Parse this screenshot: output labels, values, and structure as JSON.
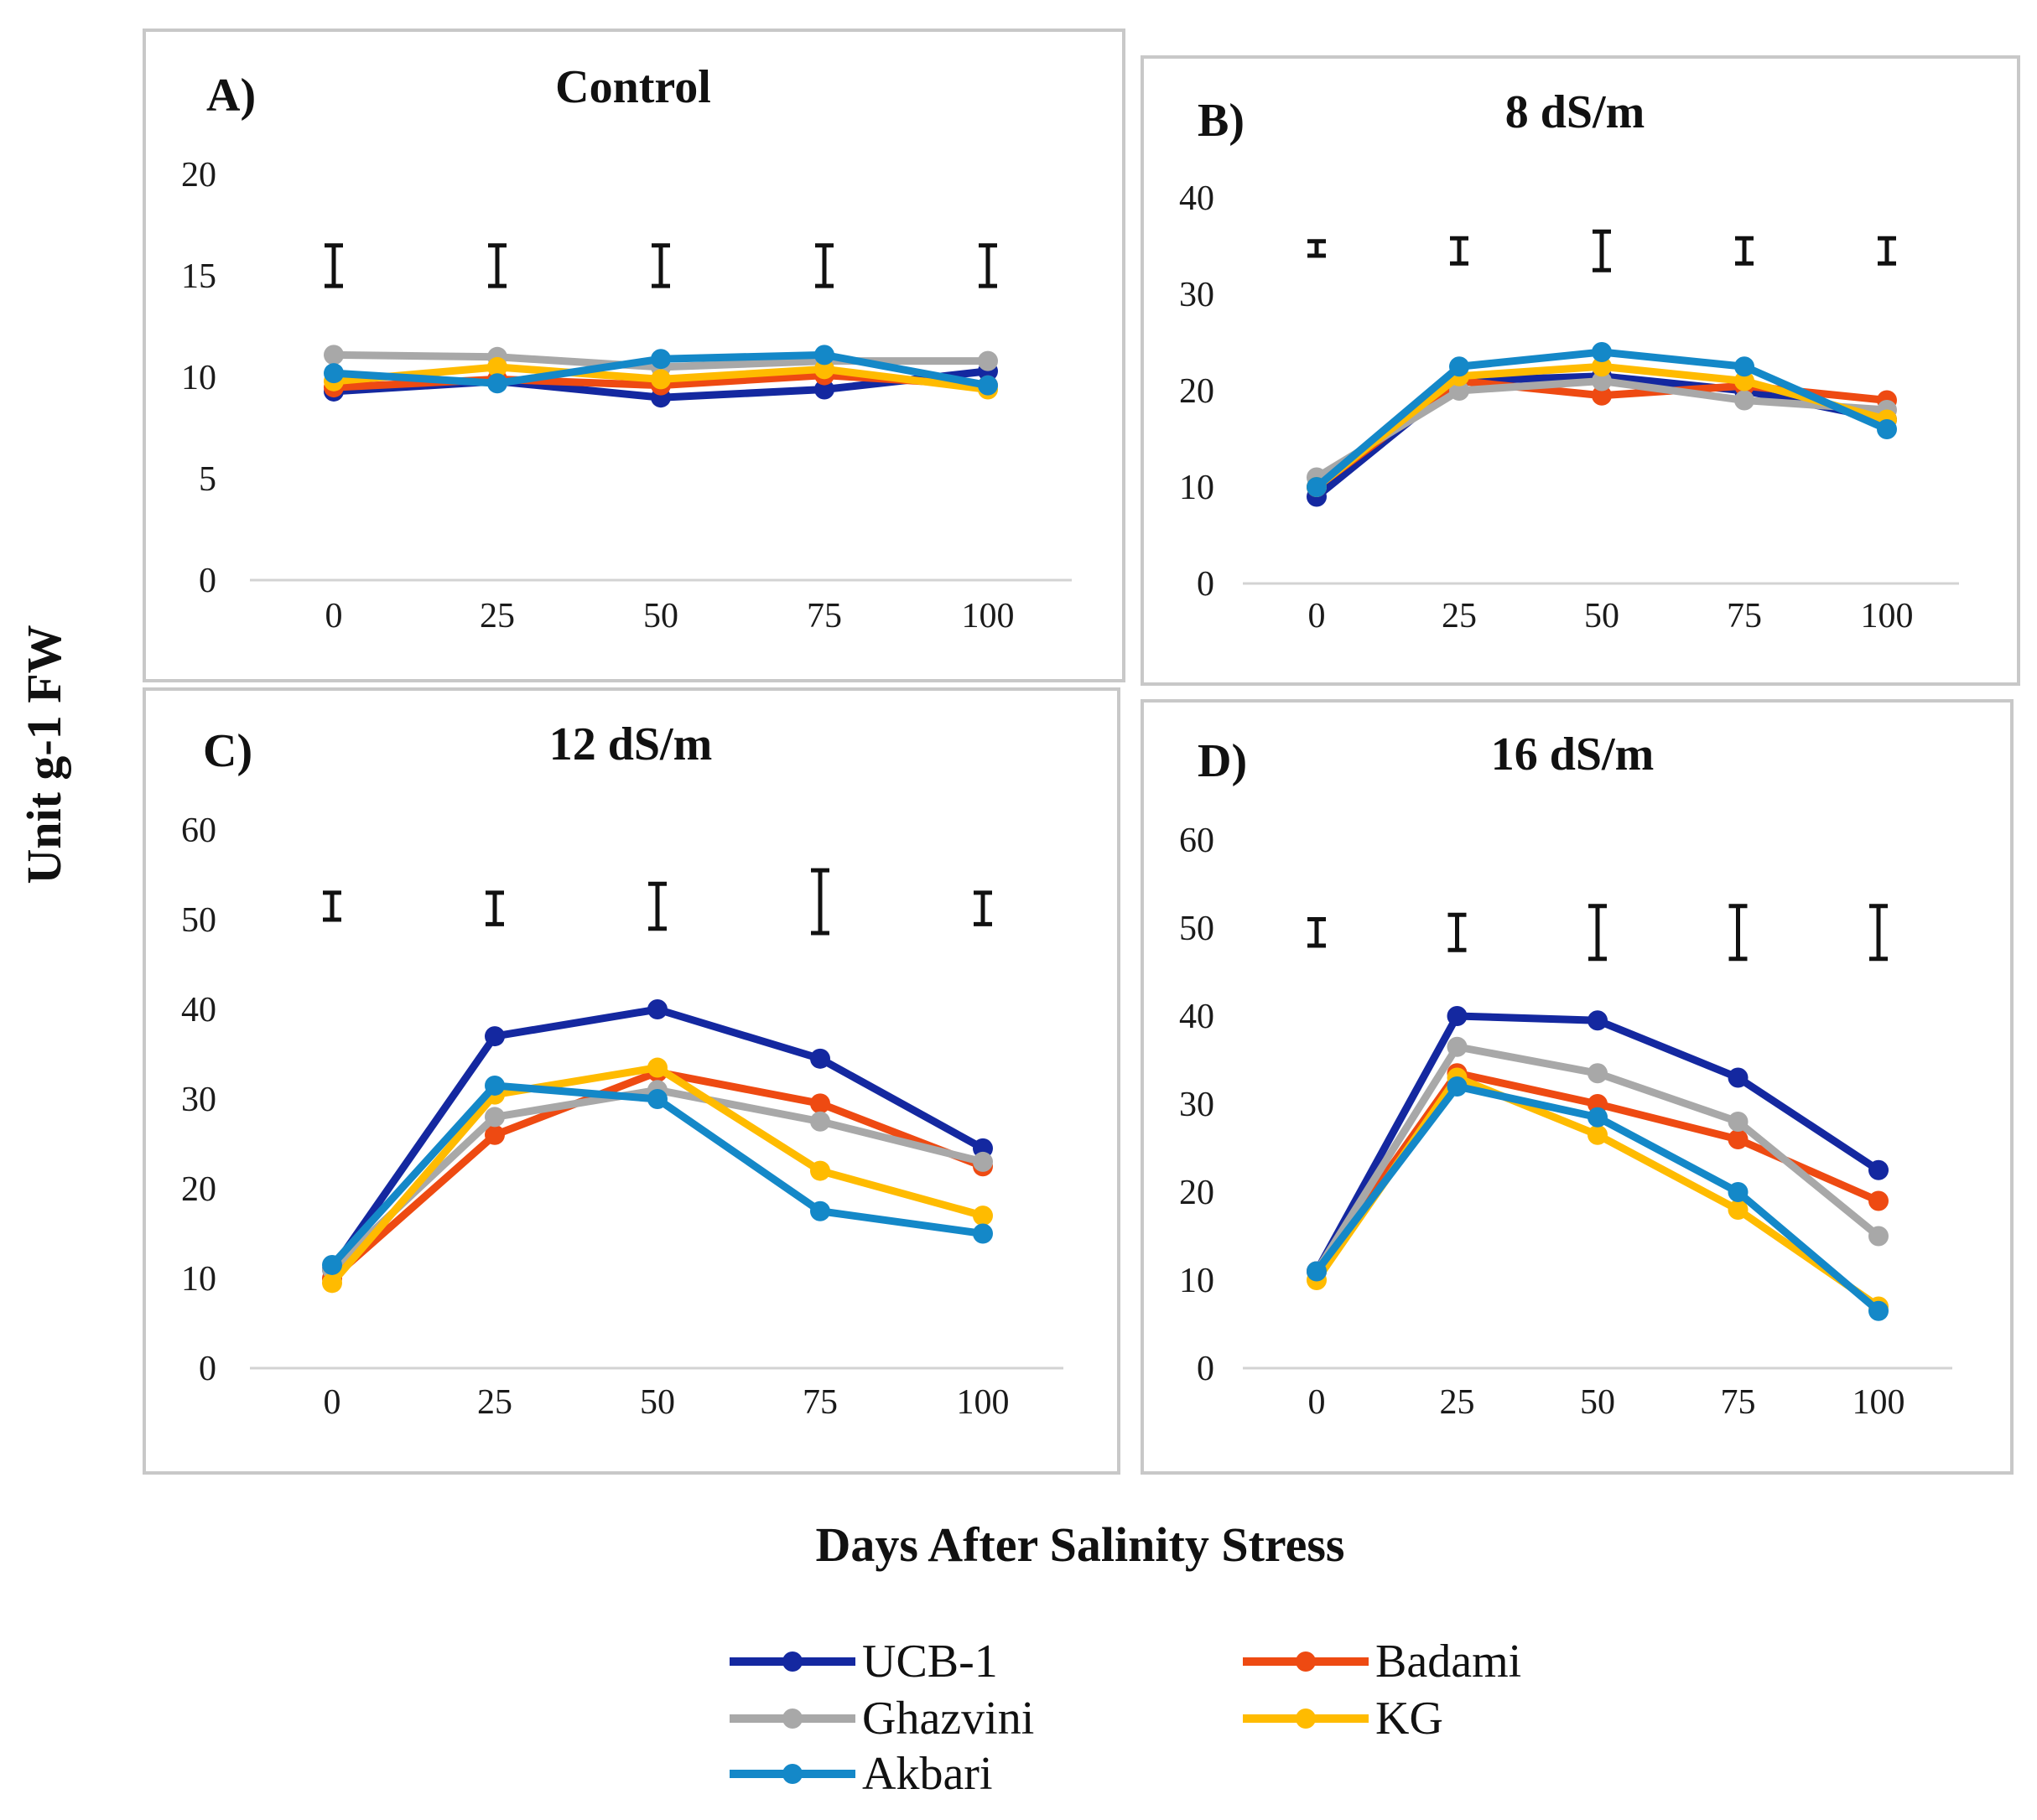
{
  "figure": {
    "y_axis_title": "Unit g-1 FW",
    "x_axis_title": "Days After Salinity Stress"
  },
  "legend": [
    {
      "name": "UCB-1",
      "color": "#1428a0"
    },
    {
      "name": "Badami",
      "color": "#ee4a12"
    },
    {
      "name": "Ghazvini",
      "color": "#a8a8a8"
    },
    {
      "name": "KG",
      "color": "#ffbb00"
    },
    {
      "name": "Akbari",
      "color": "#1488c8"
    }
  ],
  "chart_data": [
    {
      "type": "line",
      "label": "A)",
      "title": "Control",
      "x": [
        0,
        25,
        50,
        75,
        100
      ],
      "ylim": [
        0,
        20
      ],
      "yticks": [
        0,
        5,
        10,
        15,
        20
      ],
      "error_bars": [
        {
          "x": 0,
          "low": 14.5,
          "high": 16.5
        },
        {
          "x": 25,
          "low": 14.5,
          "high": 16.5
        },
        {
          "x": 50,
          "low": 14.5,
          "high": 16.5
        },
        {
          "x": 75,
          "low": 14.5,
          "high": 16.5
        },
        {
          "x": 100,
          "low": 14.5,
          "high": 16.5
        }
      ],
      "series": [
        {
          "name": "UCB-1",
          "color": "#1428a0",
          "values": [
            9.3,
            9.8,
            9.0,
            9.4,
            10.3
          ]
        },
        {
          "name": "Badami",
          "color": "#ee4a12",
          "values": [
            9.5,
            9.9,
            9.6,
            10.1,
            9.6
          ]
        },
        {
          "name": "Ghazvini",
          "color": "#a8a8a8",
          "values": [
            11.1,
            11.0,
            10.5,
            10.8,
            10.8
          ]
        },
        {
          "name": "KG",
          "color": "#ffbb00",
          "values": [
            9.8,
            10.5,
            9.9,
            10.4,
            9.4
          ]
        },
        {
          "name": "Akbari",
          "color": "#1488c8",
          "values": [
            10.2,
            9.7,
            10.9,
            11.1,
            9.6
          ]
        }
      ]
    },
    {
      "type": "line",
      "label": "B)",
      "title": "8 dS/m",
      "x": [
        0,
        25,
        50,
        75,
        100
      ],
      "ylim": [
        0,
        40
      ],
      "yticks": [
        0,
        10,
        20,
        30,
        40
      ],
      "error_bars": [
        {
          "x": 0,
          "low": 34,
          "high": 35.5
        },
        {
          "x": 25,
          "low": 33.2,
          "high": 35.8
        },
        {
          "x": 50,
          "low": 32.5,
          "high": 36.5
        },
        {
          "x": 75,
          "low": 33.2,
          "high": 35.8
        },
        {
          "x": 100,
          "low": 33.2,
          "high": 35.8
        }
      ],
      "series": [
        {
          "name": "UCB-1",
          "color": "#1428a0",
          "values": [
            9,
            21,
            21.5,
            20,
            17
          ]
        },
        {
          "name": "Badami",
          "color": "#ee4a12",
          "values": [
            10,
            21,
            19.5,
            20.5,
            19
          ]
        },
        {
          "name": "Ghazvini",
          "color": "#a8a8a8",
          "values": [
            11,
            20,
            21,
            19,
            18
          ]
        },
        {
          "name": "KG",
          "color": "#ffbb00",
          "values": [
            10,
            21.5,
            22.5,
            21,
            17
          ]
        },
        {
          "name": "Akbari",
          "color": "#1488c8",
          "values": [
            10,
            22.5,
            24,
            22.5,
            16
          ]
        }
      ]
    },
    {
      "type": "line",
      "label": "C)",
      "title": "12 dS/m",
      "x": [
        0,
        25,
        50,
        75,
        100
      ],
      "ylim": [
        0,
        60
      ],
      "yticks": [
        0,
        10,
        20,
        30,
        40,
        50,
        60
      ],
      "error_bars": [
        {
          "x": 0,
          "low": 50,
          "high": 53
        },
        {
          "x": 25,
          "low": 49.5,
          "high": 53
        },
        {
          "x": 50,
          "low": 49,
          "high": 54
        },
        {
          "x": 75,
          "low": 48.5,
          "high": 55.5
        },
        {
          "x": 100,
          "low": 49.5,
          "high": 53
        }
      ],
      "series": [
        {
          "name": "UCB-1",
          "color": "#1428a0",
          "values": [
            11,
            37,
            40,
            34.5,
            24.5
          ]
        },
        {
          "name": "Badami",
          "color": "#ee4a12",
          "values": [
            10,
            26,
            33,
            29.5,
            22.5
          ]
        },
        {
          "name": "Ghazvini",
          "color": "#a8a8a8",
          "values": [
            11,
            28,
            31,
            27.5,
            23
          ]
        },
        {
          "name": "KG",
          "color": "#ffbb00",
          "values": [
            9.5,
            30.5,
            33.5,
            22,
            17
          ]
        },
        {
          "name": "Akbari",
          "color": "#1488c8",
          "values": [
            11.5,
            31.5,
            30,
            17.5,
            15
          ]
        }
      ]
    },
    {
      "type": "line",
      "label": "D)",
      "title": "16 dS/m",
      "x": [
        0,
        25,
        50,
        75,
        100
      ],
      "ylim": [
        0,
        60
      ],
      "yticks": [
        0,
        10,
        20,
        30,
        40,
        50,
        60
      ],
      "error_bars": [
        {
          "x": 0,
          "low": 48,
          "high": 51
        },
        {
          "x": 25,
          "low": 47.5,
          "high": 51.5
        },
        {
          "x": 50,
          "low": 46.5,
          "high": 52.5
        },
        {
          "x": 75,
          "low": 46.5,
          "high": 52.5
        },
        {
          "x": 100,
          "low": 46.5,
          "high": 52.5
        }
      ],
      "series": [
        {
          "name": "UCB-1",
          "color": "#1428a0",
          "values": [
            11,
            40,
            39.5,
            33,
            22.5
          ]
        },
        {
          "name": "Badami",
          "color": "#ee4a12",
          "values": [
            11,
            33.5,
            30,
            26,
            19
          ]
        },
        {
          "name": "Ghazvini",
          "color": "#a8a8a8",
          "values": [
            11,
            36.5,
            33.5,
            28,
            15
          ]
        },
        {
          "name": "KG",
          "color": "#ffbb00",
          "values": [
            10,
            33,
            26.5,
            18,
            7
          ]
        },
        {
          "name": "Akbari",
          "color": "#1488c8",
          "values": [
            11,
            32,
            28.5,
            20,
            6.5
          ]
        }
      ]
    }
  ]
}
